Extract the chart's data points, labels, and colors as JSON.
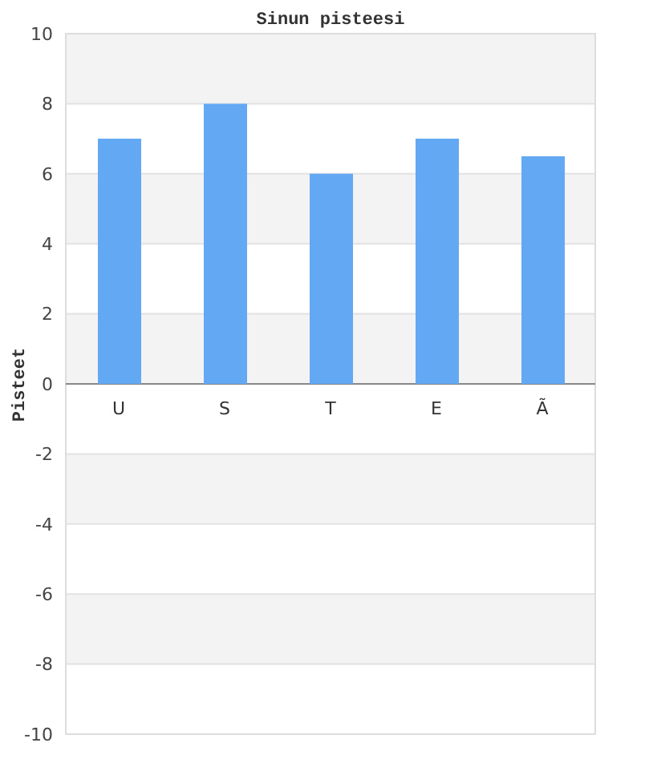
{
  "chart_data": {
    "type": "bar",
    "title": "Sinun pisteesi",
    "ylabel": "Pisteet",
    "categories": [
      "U",
      "S",
      "T",
      "E",
      "Ã"
    ],
    "values": [
      7,
      8,
      6,
      7,
      6.5
    ],
    "color": "#62a8f3",
    "ylim": [
      -10,
      10
    ],
    "yticks": [
      -10,
      -8,
      -6,
      -4,
      -2,
      0,
      2,
      4,
      6,
      8,
      10
    ],
    "grid": "y"
  }
}
